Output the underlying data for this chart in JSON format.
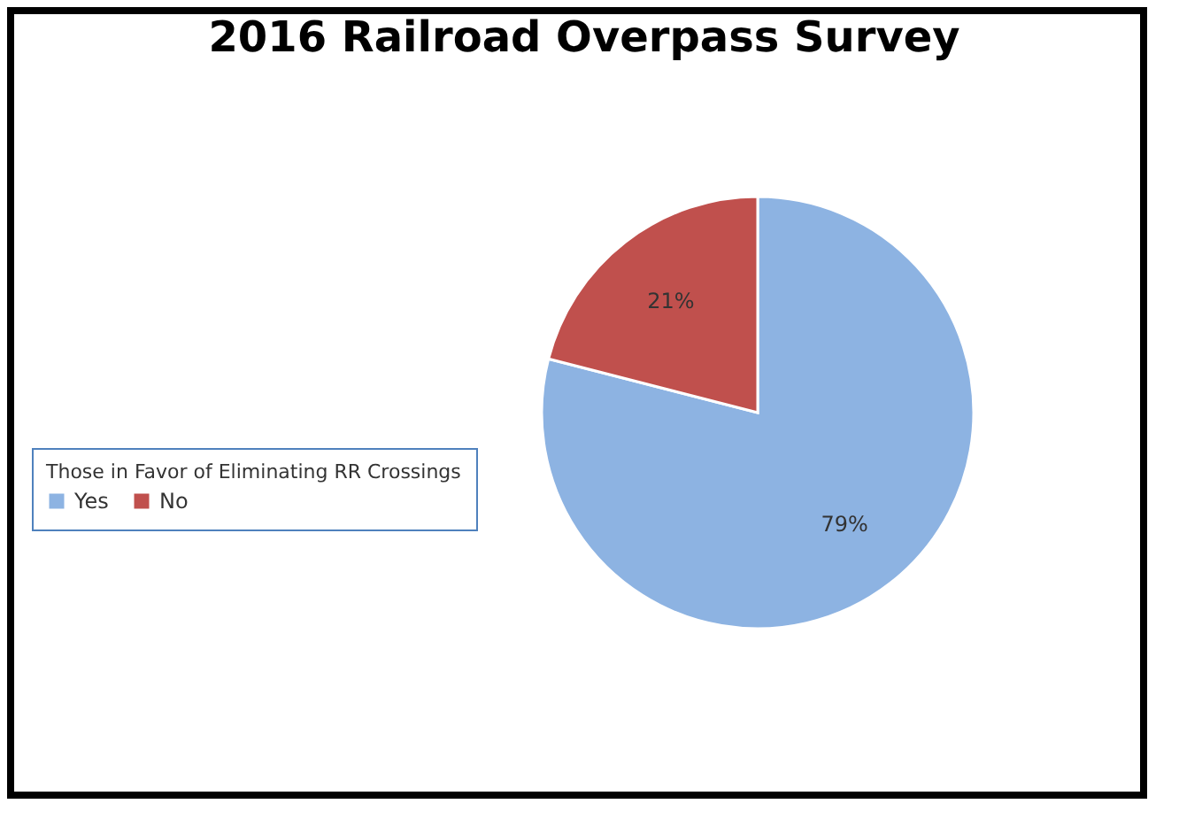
{
  "chart_data": {
    "type": "pie",
    "title": "2016 Railroad Overpass Survey",
    "legend_title": "Those in Favor of Eliminating RR Crossings",
    "legend": "left",
    "categories": [
      "Yes",
      "No"
    ],
    "values": [
      79,
      21
    ],
    "colors": [
      "#8db3e2",
      "#c0504d"
    ],
    "value_labels": [
      "79%",
      "21%"
    ]
  }
}
